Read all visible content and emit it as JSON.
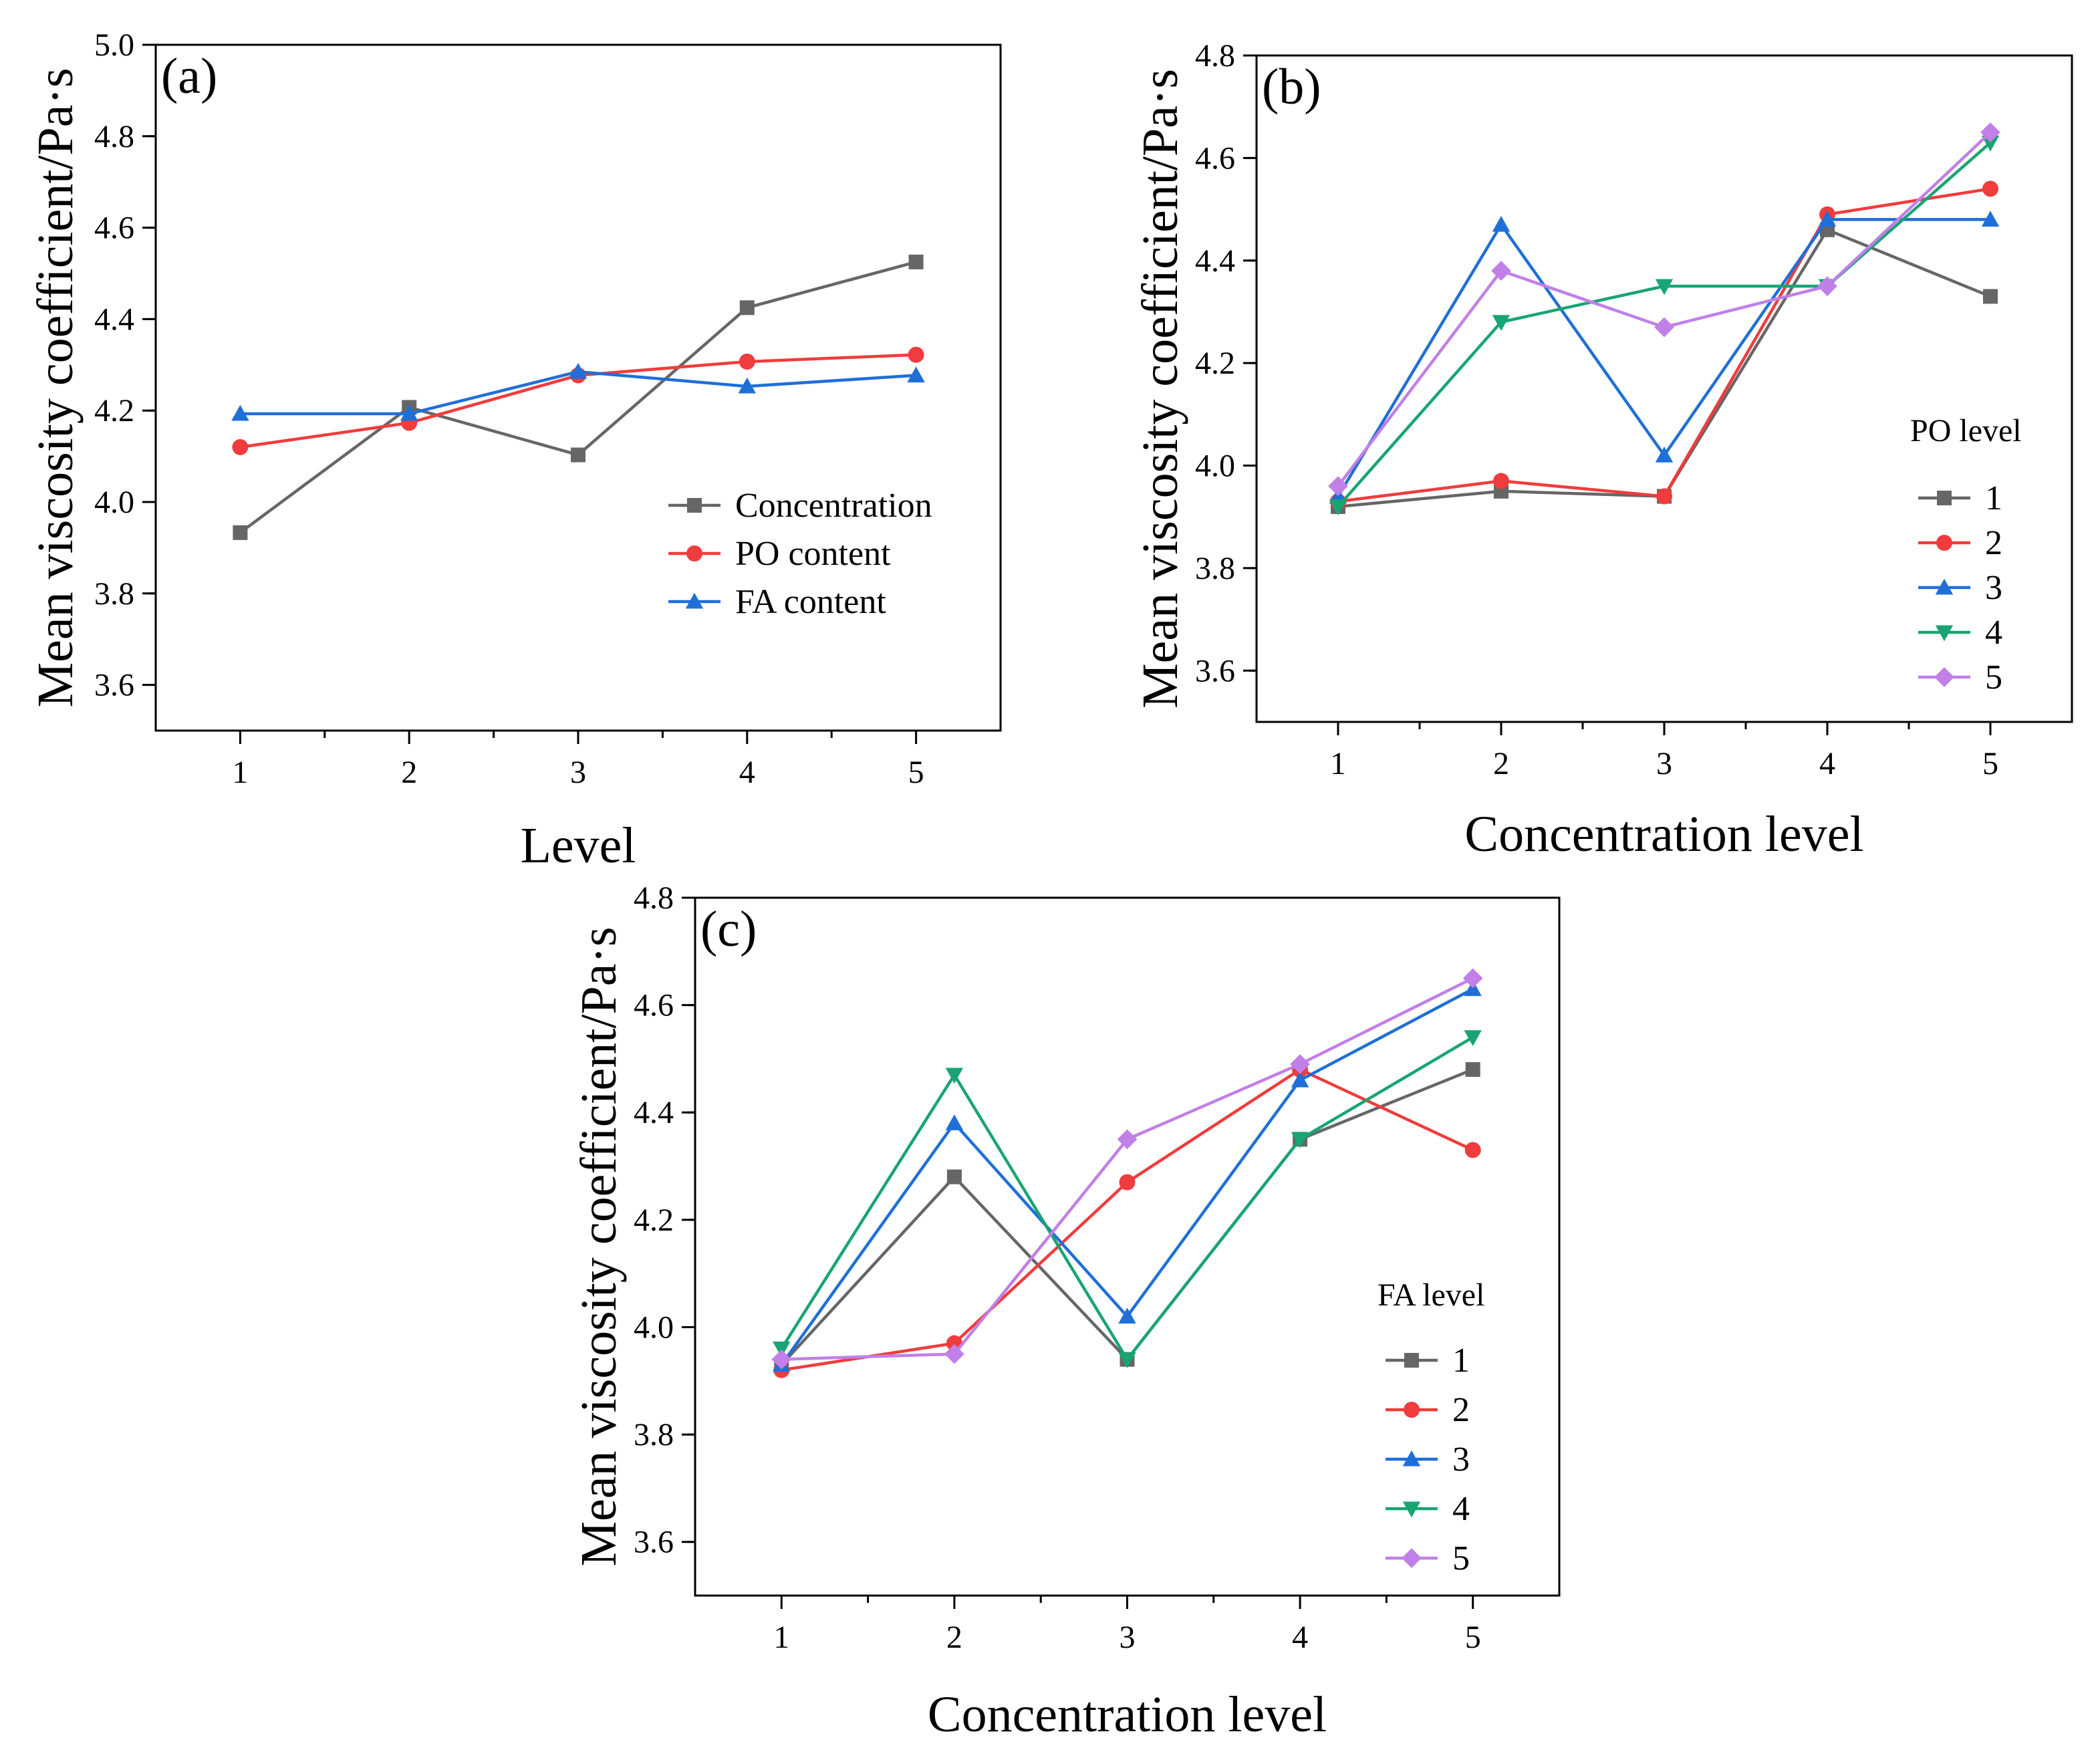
{
  "chart_data": [
    {
      "type": "line",
      "panel_label": "(a)",
      "xlabel": "Level",
      "ylabel": "Mean viscosity coefficient/Pa·s",
      "categories": [
        "1",
        "2",
        "3",
        "4",
        "5"
      ],
      "ylim": [
        3.5,
        5.0
      ],
      "yticks": [
        "3.6",
        "3.8",
        "4.0",
        "4.2",
        "4.4",
        "4.6",
        "4.8",
        "5.0"
      ],
      "legend_title": "",
      "legend_position": "center-right",
      "grid": false,
      "series": [
        {
          "name": "Concentration",
          "color": "#666666",
          "marker": "square",
          "values": [
            3.933,
            4.207,
            4.103,
            4.425,
            4.525
          ]
        },
        {
          "name": "PO content",
          "color": "#f03c3c",
          "marker": "circle",
          "values": [
            4.12,
            4.173,
            4.277,
            4.307,
            4.322
          ]
        },
        {
          "name": "FA content",
          "color": "#1f6fd8",
          "marker": "triangle-up",
          "values": [
            4.193,
            4.193,
            4.285,
            4.253,
            4.277
          ]
        }
      ]
    },
    {
      "type": "line",
      "panel_label": "(b)",
      "xlabel": "Concentration level",
      "ylabel": "Mean viscosity coefficient/Pa·s",
      "categories": [
        "1",
        "2",
        "3",
        "4",
        "5"
      ],
      "ylim": [
        3.5,
        4.8
      ],
      "yticks": [
        "3.6",
        "3.8",
        "4.0",
        "4.2",
        "4.4",
        "4.6",
        "4.8"
      ],
      "legend_title": "PO level",
      "legend_position": "bottom-right",
      "grid": false,
      "series": [
        {
          "name": "1",
          "color": "#666666",
          "marker": "square",
          "values": [
            3.92,
            3.95,
            3.94,
            4.46,
            4.33
          ]
        },
        {
          "name": "2",
          "color": "#f03c3c",
          "marker": "circle",
          "values": [
            3.93,
            3.97,
            3.94,
            4.49,
            4.54
          ]
        },
        {
          "name": "3",
          "color": "#1f6fd8",
          "marker": "triangle-up",
          "values": [
            3.94,
            4.47,
            4.02,
            4.48,
            4.48
          ]
        },
        {
          "name": "4",
          "color": "#18a572",
          "marker": "triangle-down",
          "values": [
            3.92,
            4.28,
            4.35,
            4.35,
            4.63
          ]
        },
        {
          "name": "5",
          "color": "#c17fe8",
          "marker": "diamond",
          "values": [
            3.96,
            4.38,
            4.27,
            4.35,
            4.65
          ]
        }
      ]
    },
    {
      "type": "line",
      "panel_label": "(c)",
      "xlabel": "Concentration level",
      "ylabel": "Mean viscosity coefficient/Pa·s",
      "categories": [
        "1",
        "2",
        "3",
        "4",
        "5"
      ],
      "ylim": [
        3.5,
        4.8
      ],
      "yticks": [
        "3.6",
        "3.8",
        "4.0",
        "4.2",
        "4.4",
        "4.6",
        "4.8"
      ],
      "legend_title": "FA level",
      "legend_position": "bottom-right",
      "grid": false,
      "series": [
        {
          "name": "1",
          "color": "#666666",
          "marker": "square",
          "values": [
            3.93,
            4.28,
            3.94,
            4.35,
            4.48
          ]
        },
        {
          "name": "2",
          "color": "#f03c3c",
          "marker": "circle",
          "values": [
            3.92,
            3.97,
            4.27,
            4.48,
            4.33
          ]
        },
        {
          "name": "3",
          "color": "#1f6fd8",
          "marker": "triangle-up",
          "values": [
            3.93,
            4.38,
            4.02,
            4.46,
            4.63
          ]
        },
        {
          "name": "4",
          "color": "#18a572",
          "marker": "triangle-down",
          "values": [
            3.96,
            4.47,
            3.94,
            4.35,
            4.54
          ]
        },
        {
          "name": "5",
          "color": "#c17fe8",
          "marker": "diamond",
          "values": [
            3.94,
            3.95,
            4.35,
            4.49,
            4.65
          ]
        }
      ]
    }
  ]
}
